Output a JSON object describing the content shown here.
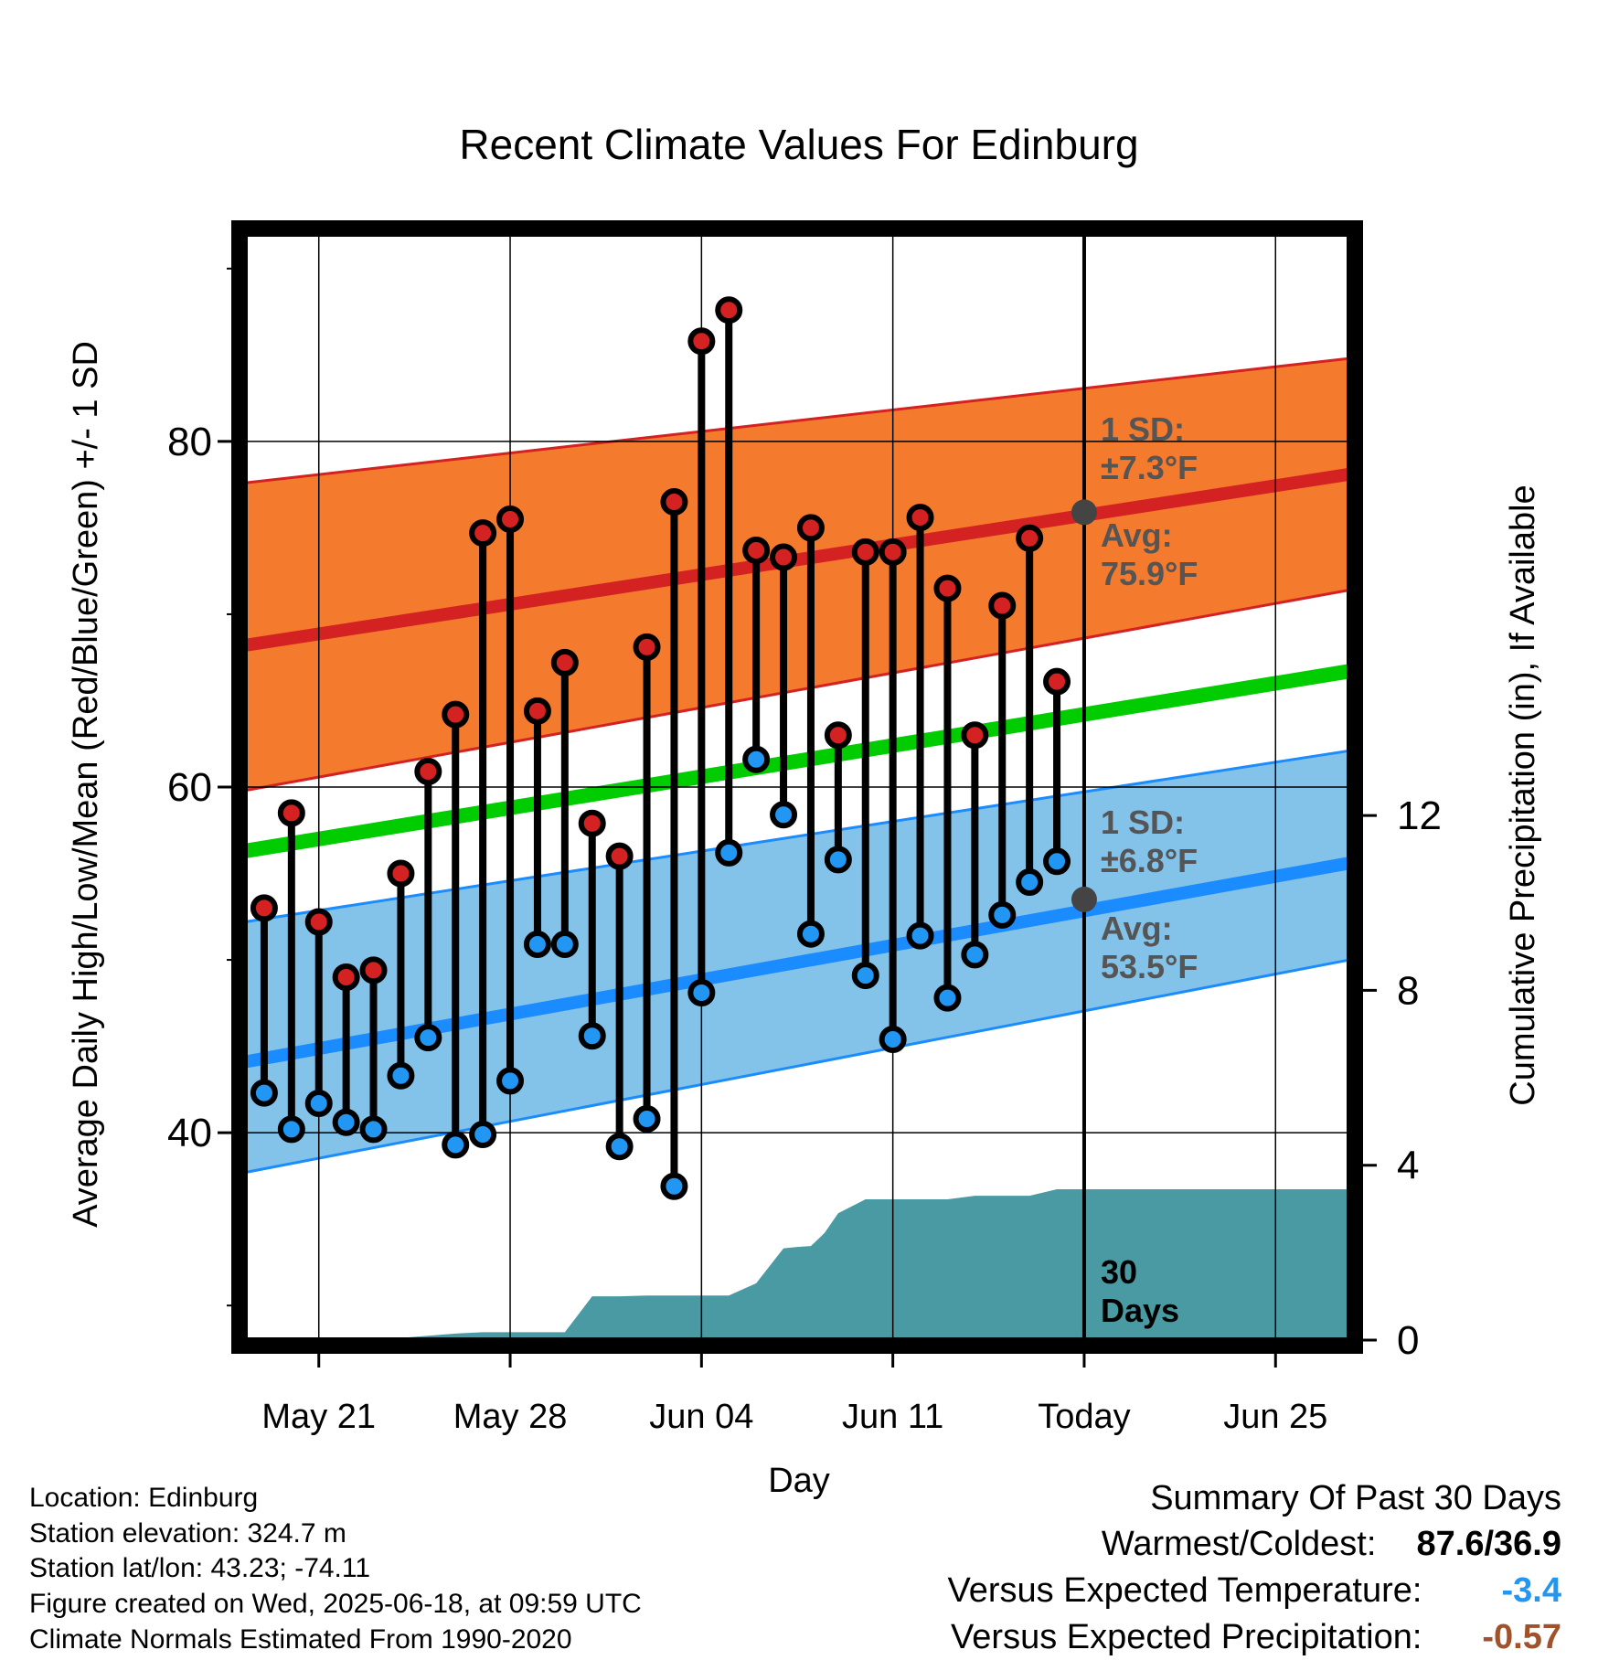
{
  "chart_data": {
    "type": "line",
    "title": "Recent Climate Values For Edinburg",
    "xlabel": "Day",
    "ylabel": "Average Daily High/Low/Mean (Red/Blue/Green) +/- 1 SD",
    "y2label": "Cumulative Precipitation (in), If Available",
    "ylim": [
      28,
      92
    ],
    "y2lim": [
      0,
      25.3
    ],
    "yticks": [
      40,
      60,
      80
    ],
    "y2ticks": [
      0,
      4,
      8,
      12
    ],
    "xticks": [
      {
        "label": "May 21",
        "day": 3
      },
      {
        "label": "May 28",
        "day": 10
      },
      {
        "label": "Jun 04",
        "day": 17
      },
      {
        "label": "Jun 11",
        "day": 24
      },
      {
        "label": "Today",
        "day": 31
      },
      {
        "label": "Jun 25",
        "day": 38
      }
    ],
    "xlim": [
      0.3,
      40.7
    ],
    "grid": true,
    "today_day": 31,
    "normals": {
      "high_avg": {
        "start": 68.2,
        "end": 78.1
      },
      "high_sd_band": {
        "lower_start": 59.8,
        "lower_end": 71.4,
        "upper_start": 77.6,
        "upper_end": 84.8
      },
      "mean_avg": {
        "start": 56.3,
        "end": 66.7
      },
      "low_avg": {
        "start": 44.1,
        "end": 55.6
      },
      "low_sd_band": {
        "lower_start": 37.7,
        "lower_end": 50.0,
        "upper_start": 52.2,
        "upper_end": 62.1
      }
    },
    "daily": {
      "days": [
        1,
        2,
        3,
        4,
        5,
        6,
        7,
        8,
        9,
        10,
        11,
        12,
        13,
        14,
        15,
        16,
        17,
        18,
        19,
        20,
        21,
        22,
        23,
        24,
        25,
        26,
        27,
        28,
        29,
        30
      ],
      "highs": [
        53.0,
        58.5,
        52.2,
        49.0,
        49.4,
        55.0,
        60.9,
        64.2,
        74.7,
        75.5,
        64.4,
        67.2,
        57.9,
        56.0,
        68.1,
        76.5,
        85.8,
        87.6,
        73.7,
        73.3,
        75.0,
        63.0,
        73.6,
        73.6,
        75.6,
        71.5,
        63.0,
        70.5,
        74.4,
        66.1
      ],
      "lows": [
        42.3,
        40.2,
        41.7,
        40.6,
        40.2,
        43.3,
        45.5,
        39.3,
        39.9,
        43.0,
        50.9,
        50.9,
        45.6,
        39.2,
        40.8,
        36.9,
        48.1,
        56.2,
        61.6,
        58.4,
        51.5,
        55.8,
        49.1,
        45.4,
        51.4,
        47.8,
        50.3,
        52.6,
        54.5,
        55.7
      ]
    },
    "precip_cumulative": {
      "days": [
        0.3,
        4,
        6,
        7,
        8,
        9,
        10,
        11,
        12,
        13,
        14,
        15,
        16,
        17,
        18,
        19,
        20,
        20.5,
        21,
        21.5,
        22,
        23,
        24,
        25,
        26,
        27,
        28,
        29,
        30,
        31,
        40.7
      ],
      "values": [
        0,
        0,
        0.05,
        0.1,
        0.15,
        0.18,
        0.18,
        0.18,
        0.18,
        1.0,
        1.0,
        1.02,
        1.02,
        1.02,
        1.02,
        1.3,
        2.1,
        2.13,
        2.15,
        2.45,
        2.9,
        3.22,
        3.22,
        3.22,
        3.22,
        3.3,
        3.3,
        3.3,
        3.45,
        3.45,
        3.45
      ]
    },
    "annotations": {
      "high_sd_label": "1 SD:",
      "high_sd_value": "±7.3°F",
      "high_avg_label": "Avg:",
      "high_avg_value": "75.9°F",
      "low_sd_label": "1 SD:",
      "low_sd_value": "±6.8°F",
      "low_avg_label": "Avg:",
      "low_avg_value": "53.5°F",
      "today_high_avg": 75.9,
      "today_low_avg": 53.5,
      "window_count": "30",
      "window_unit": "Days"
    },
    "colors": {
      "high_band": "#f47a2e",
      "high_line": "#d42222",
      "mean_line": "#00cc00",
      "low_band": "#83c3ea",
      "low_line": "#1a8cff",
      "precip": "#4a9aa4",
      "high_marker": "#d42222",
      "low_marker": "#2196f3",
      "avg_dot": "#444444",
      "annot_text": "#555555"
    }
  },
  "footer": {
    "location": "Location: Edinburg",
    "elevation": "Station elevation: 324.7 m",
    "latlon": "Station lat/lon: 43.23; -74.11",
    "created": "Figure created on Wed, 2025-06-18, at 09:59 UTC",
    "normals": "Climate Normals Estimated From 1990-2020"
  },
  "summary": {
    "title": "Summary Of Past 30 Days",
    "warm_cold_label": "Warmest/Coldest:",
    "warm_cold_value": "87.6/36.9",
    "temp_label": "Versus Expected Temperature:",
    "temp_value": "-3.4",
    "precip_label": "Versus Expected Precipitation:",
    "precip_value": "-0.57",
    "temp_color": "#2196f3",
    "precip_color": "#a0522d"
  }
}
